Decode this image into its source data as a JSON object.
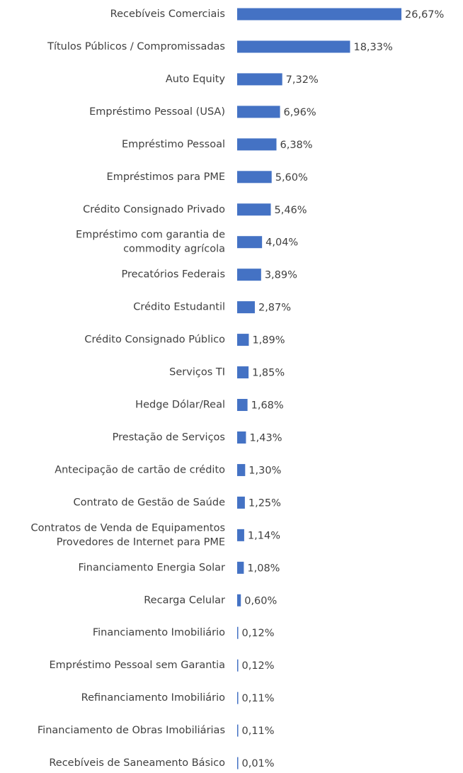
{
  "chart_data": {
    "type": "barh",
    "categories": [
      "Recebíveis Comerciais",
      "Títulos Públicos / Compromissadas",
      "Auto Equity",
      "Empréstimo Pessoal (USA)",
      "Empréstimo Pessoal",
      "Empréstimos para PME",
      "Crédito Consignado Privado",
      "Empréstimo com garantia de\ncommodity agrícola",
      "Precatórios Federais",
      "Crédito Estudantil",
      "Crédito Consignado Público",
      "Serviços TI",
      "Hedge Dólar/Real",
      "Prestação de Serviços",
      "Antecipação de cartão de crédito",
      "Contrato de Gestão de Saúde",
      "Contratos de Venda de Equipamentos\nProvedores de Internet para PME",
      "Financiamento Energia Solar",
      "Recarga Celular",
      "Financiamento Imobiliário",
      "Empréstimo Pessoal sem Garantia",
      "Refinanciamento Imobiliário",
      "Financiamento de Obras Imobiliárias",
      "Recebíveis de Saneamento Básico"
    ],
    "values": [
      26.67,
      18.33,
      7.32,
      6.96,
      6.38,
      5.6,
      5.46,
      4.04,
      3.89,
      2.87,
      1.89,
      1.85,
      1.68,
      1.43,
      1.3,
      1.25,
      1.14,
      1.08,
      0.6,
      0.12,
      0.12,
      0.11,
      0.11,
      0.01
    ],
    "value_labels": [
      "26,67%",
      "18,33%",
      "7,32%",
      "6,96%",
      "6,38%",
      "5,60%",
      "5,46%",
      "4,04%",
      "3,89%",
      "2,87%",
      "1,89%",
      "1,85%",
      "1,68%",
      "1,43%",
      "1,30%",
      "1,25%",
      "1,14%",
      "1,08%",
      "0,60%",
      "0,12%",
      "0,12%",
      "0,11%",
      "0,11%",
      "0,01%"
    ],
    "color": "#4472c4"
  }
}
